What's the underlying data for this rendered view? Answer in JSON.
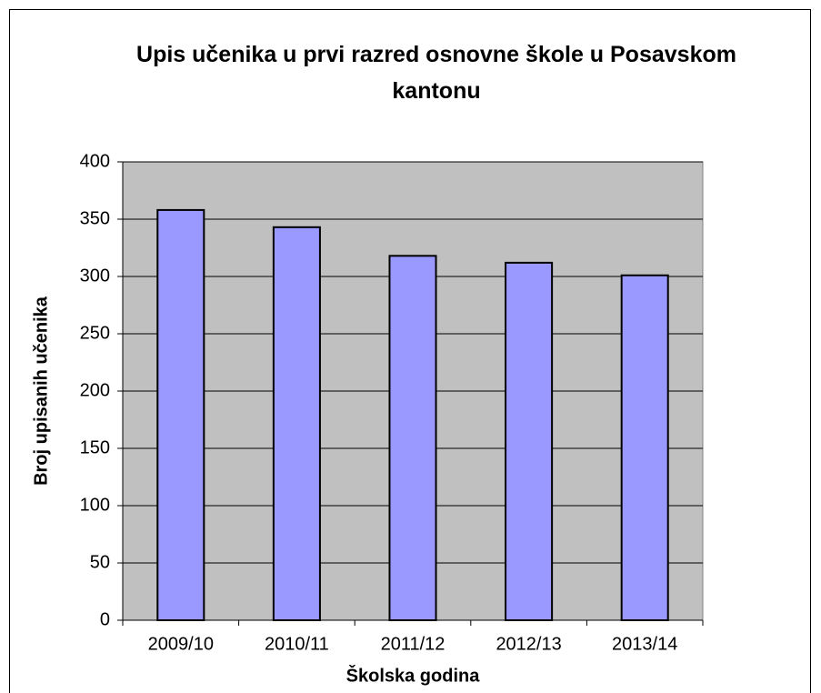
{
  "chart_data": {
    "type": "bar",
    "title": "Upis učenika u prvi razred osnovne škole u Posavskom kantonu",
    "x_label": "Školska godina",
    "y_label": "Broj upisanih učenika",
    "categories": [
      "2009/10",
      "2010/11",
      "2011/12",
      "2012/13",
      "2013/14"
    ],
    "values": [
      358,
      343,
      318,
      312,
      301
    ],
    "color": "#9999ff",
    "ylim": [
      0,
      400
    ],
    "yticks": [
      0,
      50,
      100,
      150,
      200,
      250,
      300,
      350,
      400
    ],
    "grid": true
  }
}
